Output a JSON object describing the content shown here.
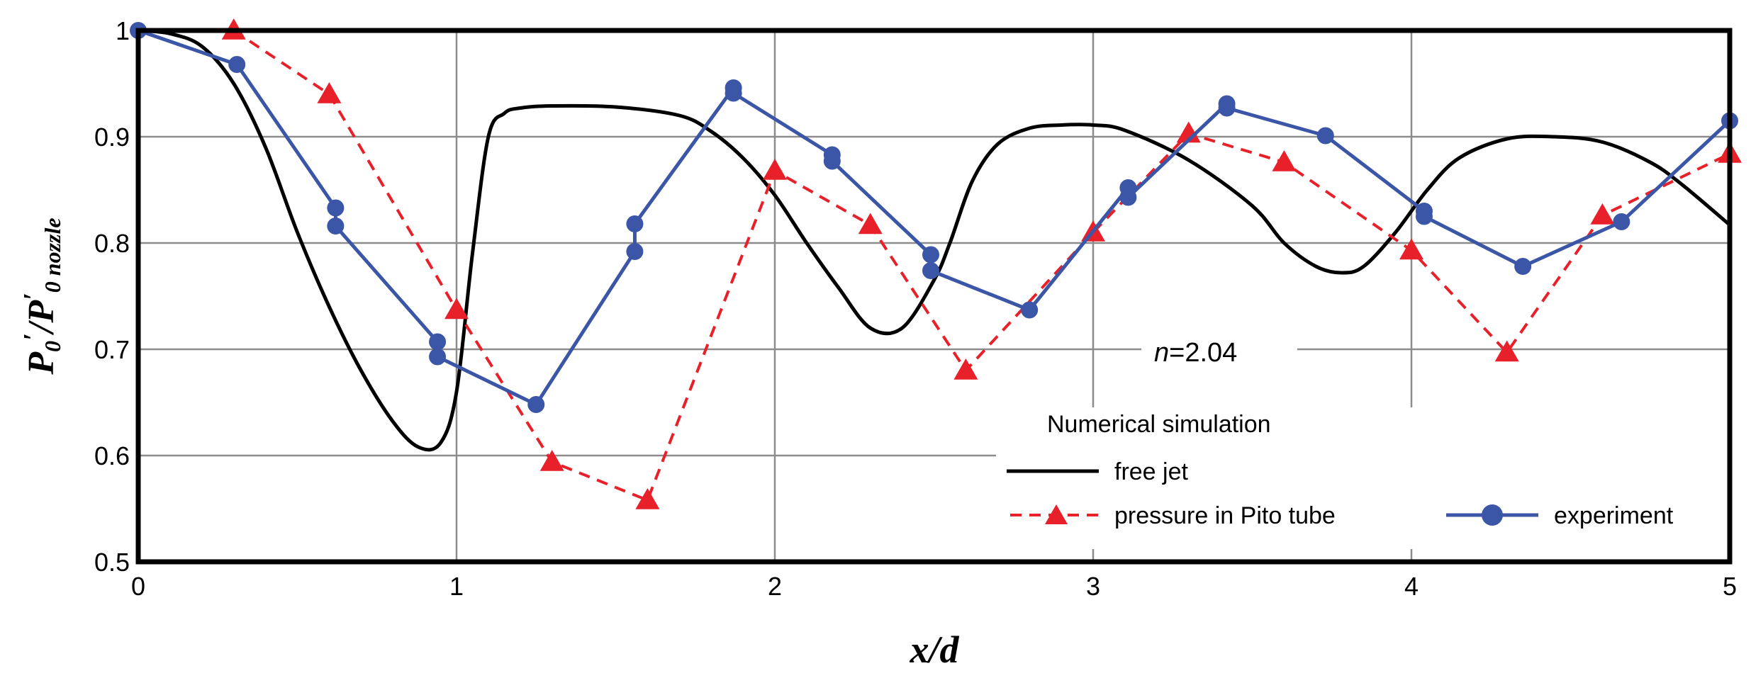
{
  "chart_data": {
    "type": "line",
    "title": "",
    "xlabel": "x/d",
    "ylabel_main": "P",
    "ylabel_parts": {
      "p1": "P",
      "s1": "0",
      "prime1": "′",
      "slash": "/",
      "p2": "P",
      "prime2": "′",
      "s2": "0 nozzle"
    },
    "xlim": [
      0,
      5
    ],
    "ylim": [
      0.5,
      1.0
    ],
    "xticks": [
      0,
      1,
      2,
      3,
      4,
      5
    ],
    "xtick_labels": [
      "0",
      "1",
      "2",
      "3",
      "4",
      "5"
    ],
    "yticks": [
      0.5,
      0.6,
      0.7,
      0.8,
      0.9,
      1.0
    ],
    "ytick_labels": [
      "0.5",
      "0.6",
      "0.7",
      "0.8",
      "0.9",
      "1"
    ],
    "grid": true,
    "annotation": {
      "prefix": "n",
      "value": "=2.04"
    },
    "legend": {
      "title": "Numerical simulation",
      "entries": [
        "free jet",
        "pressure in Pito tube",
        "experiment"
      ]
    },
    "colors": {
      "free_jet": "#000000",
      "pitot": "#e8202a",
      "experiment": "#3b56a6",
      "grid": "#8c8c8c"
    },
    "series": [
      {
        "name": "free jet",
        "style": "solid",
        "x": [
          0,
          0.1,
          0.2,
          0.3,
          0.4,
          0.5,
          0.6,
          0.7,
          0.8,
          0.88,
          0.95,
          1.0,
          1.05,
          1.1,
          1.15,
          1.2,
          1.3,
          1.5,
          1.7,
          1.8,
          1.9,
          2.0,
          2.1,
          2.2,
          2.3,
          2.4,
          2.5,
          2.55,
          2.62,
          2.7,
          2.8,
          2.9,
          3.0,
          3.1,
          3.3,
          3.5,
          3.6,
          3.7,
          3.78,
          3.85,
          3.95,
          4.05,
          4.15,
          4.3,
          4.45,
          4.6,
          4.75,
          4.85,
          5.0
        ],
        "values": [
          1.0,
          0.997,
          0.985,
          0.95,
          0.89,
          0.81,
          0.74,
          0.68,
          0.632,
          0.608,
          0.612,
          0.66,
          0.79,
          0.9,
          0.922,
          0.927,
          0.929,
          0.928,
          0.92,
          0.905,
          0.88,
          0.845,
          0.8,
          0.758,
          0.72,
          0.72,
          0.765,
          0.8,
          0.858,
          0.893,
          0.908,
          0.911,
          0.911,
          0.906,
          0.878,
          0.835,
          0.8,
          0.778,
          0.772,
          0.778,
          0.81,
          0.85,
          0.88,
          0.898,
          0.9,
          0.895,
          0.876,
          0.855,
          0.817
        ]
      },
      {
        "name": "pressure in Pito tube",
        "style": "dashed",
        "x": [
          0.3,
          0.6,
          1.0,
          1.3,
          1.6,
          2.0,
          2.3,
          2.6,
          3.0,
          3.3,
          3.6,
          4.0,
          4.3,
          4.6,
          5.0
        ],
        "values": [
          1.0,
          0.94,
          0.737,
          0.594,
          0.558,
          0.868,
          0.817,
          0.68,
          0.81,
          0.903,
          0.876,
          0.793,
          0.697,
          0.826,
          0.884
        ]
      },
      {
        "name": "experiment",
        "style": "solid-marker",
        "x": [
          0,
          0.31,
          0.62,
          0.62,
          0.94,
          0.94,
          1.25,
          1.56,
          1.56,
          1.87,
          1.87,
          2.18,
          2.18,
          2.49,
          2.49,
          2.8,
          3.11,
          3.11,
          3.42,
          3.42,
          3.73,
          4.04,
          4.04,
          4.35,
          4.66,
          5.0
        ],
        "values": [
          1.0,
          0.968,
          0.833,
          0.816,
          0.707,
          0.693,
          0.648,
          0.792,
          0.818,
          0.946,
          0.941,
          0.883,
          0.877,
          0.789,
          0.774,
          0.737,
          0.852,
          0.843,
          0.931,
          0.927,
          0.901,
          0.83,
          0.825,
          0.778,
          0.82,
          0.915
        ]
      }
    ]
  }
}
